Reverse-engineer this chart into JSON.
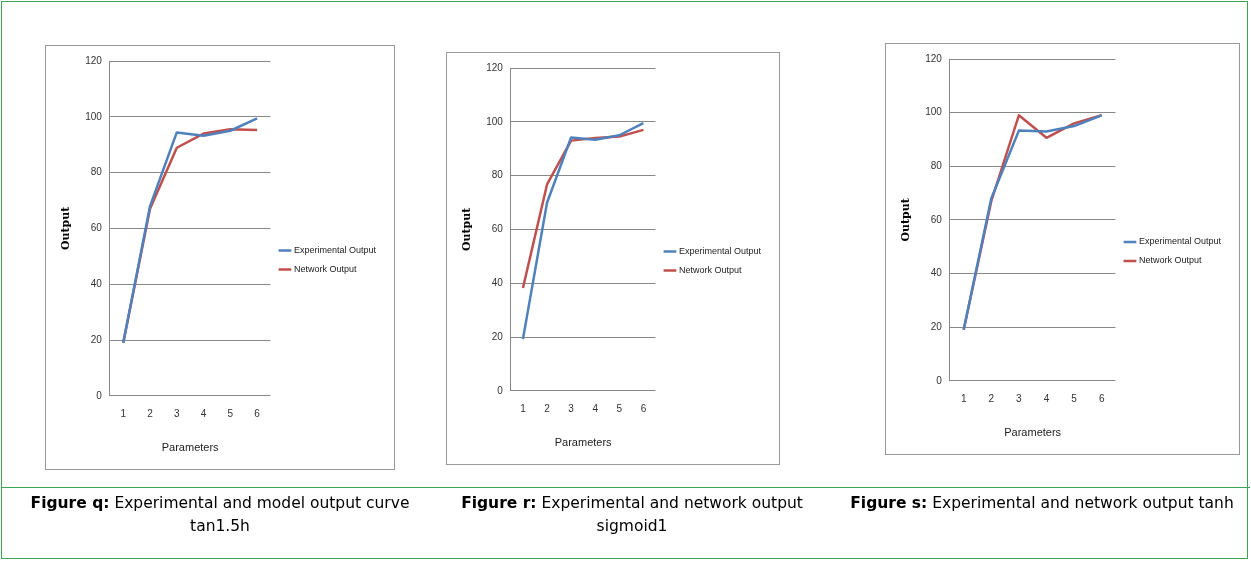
{
  "chart_data": [
    {
      "type": "line",
      "xlabel": "Parameters",
      "ylabel": "Output",
      "categories": [
        "1",
        "2",
        "3",
        "4",
        "5",
        "6"
      ],
      "ylim": [
        0,
        120
      ],
      "yticks": [
        0,
        20,
        40,
        60,
        80,
        100,
        120
      ],
      "grid": "y",
      "legend": "right",
      "marker": "none",
      "line_style": "solid",
      "series": [
        {
          "name": "Experimental Output",
          "color": "#4f81bd",
          "values": [
            19,
            68,
            94.4,
            93.2,
            95,
            99.4
          ]
        },
        {
          "name": "Network Output",
          "color": "#c0504d",
          "values": [
            19,
            67,
            88.9,
            94,
            95.5,
            95.3
          ]
        }
      ],
      "annotations": [
        "Figure q:",
        "Experimental and model output curve tan1.5h"
      ]
    },
    {
      "type": "line",
      "xlabel": "Parameters",
      "ylabel": "Output",
      "categories": [
        "1",
        "2",
        "3",
        "4",
        "5",
        "6"
      ],
      "ylim": [
        0,
        120
      ],
      "yticks": [
        0,
        20,
        40,
        60,
        80,
        100,
        120
      ],
      "grid": "y",
      "legend": "right",
      "marker": "none",
      "line_style": "solid",
      "series": [
        {
          "name": "Experimental Output",
          "color": "#4f81bd",
          "values": [
            19.2,
            69.9,
            94.2,
            93.3,
            95,
            99.5
          ]
        },
        {
          "name": "Network Output",
          "color": "#c0504d",
          "values": [
            38.2,
            76.7,
            93,
            94,
            94.5,
            97
          ]
        }
      ],
      "annotations": [
        "Figure r:",
        "Experimental and network output sigmoid1"
      ]
    },
    {
      "type": "line",
      "xlabel": "Parameters",
      "ylabel": "Output",
      "categories": [
        "1",
        "2",
        "3",
        "4",
        "5",
        "6"
      ],
      "ylim": [
        0,
        120
      ],
      "yticks": [
        0,
        20,
        40,
        60,
        80,
        100,
        120
      ],
      "grid": "y",
      "legend": "right",
      "marker": "none",
      "line_style": "solid",
      "series": [
        {
          "name": "Experimental Output",
          "color": "#4f81bd",
          "values": [
            19,
            68,
            93.3,
            93,
            95,
            99
          ]
        },
        {
          "name": "Network Output",
          "color": "#c0504d",
          "values": [
            19,
            67,
            99,
            90.6,
            96,
            99
          ]
        }
      ],
      "annotations": [
        "Figure s:",
        "Experimental and network output tanh"
      ]
    }
  ]
}
